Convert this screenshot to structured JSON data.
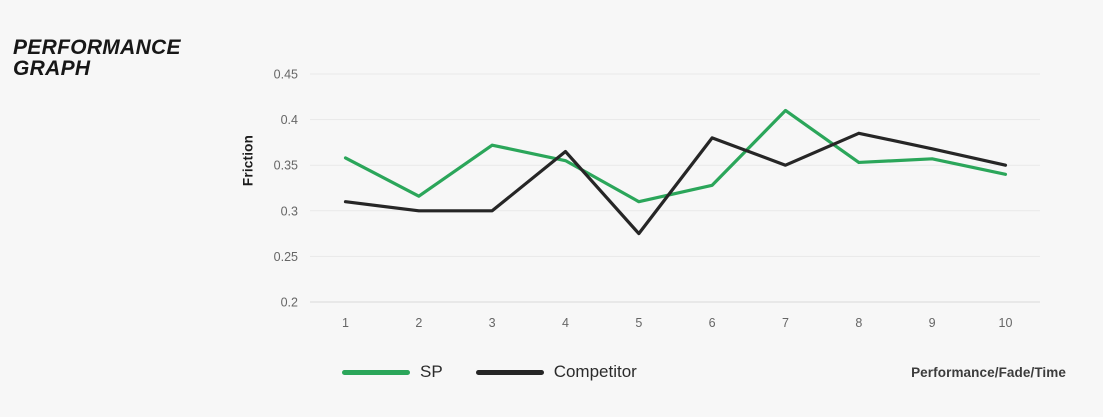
{
  "title": {
    "line1": "PERFORMANCE",
    "line2": "GRAPH"
  },
  "chart_data": {
    "type": "line",
    "title": "PERFORMANCE GRAPH",
    "xlabel": "Performance/Fade/Time",
    "ylabel": "Friction",
    "categories": [
      "1",
      "2",
      "3",
      "4",
      "5",
      "6",
      "7",
      "8",
      "9",
      "10"
    ],
    "ytick_labels": [
      "0.45",
      "0.4",
      "0.35",
      "0.3",
      "0.25",
      "0.2"
    ],
    "ylim": [
      0.2,
      0.45
    ],
    "grid": "horizontal-only",
    "legend_position": "bottom",
    "series": [
      {
        "name": "SP",
        "color": "#2ba65a",
        "values": [
          0.358,
          0.316,
          0.372,
          0.355,
          0.31,
          0.328,
          0.41,
          0.353,
          0.357,
          0.34
        ]
      },
      {
        "name": "Competitor",
        "color": "#262626",
        "values": [
          0.31,
          0.3,
          0.3,
          0.365,
          0.275,
          0.38,
          0.35,
          0.385,
          0.368,
          0.35
        ]
      }
    ]
  },
  "colors": {
    "background": "#f7f7f7",
    "gridline": "#e9e9e9",
    "gridline_bottom": "#d8d8d8",
    "tick_label": "#666666",
    "title_text": "#171717"
  }
}
